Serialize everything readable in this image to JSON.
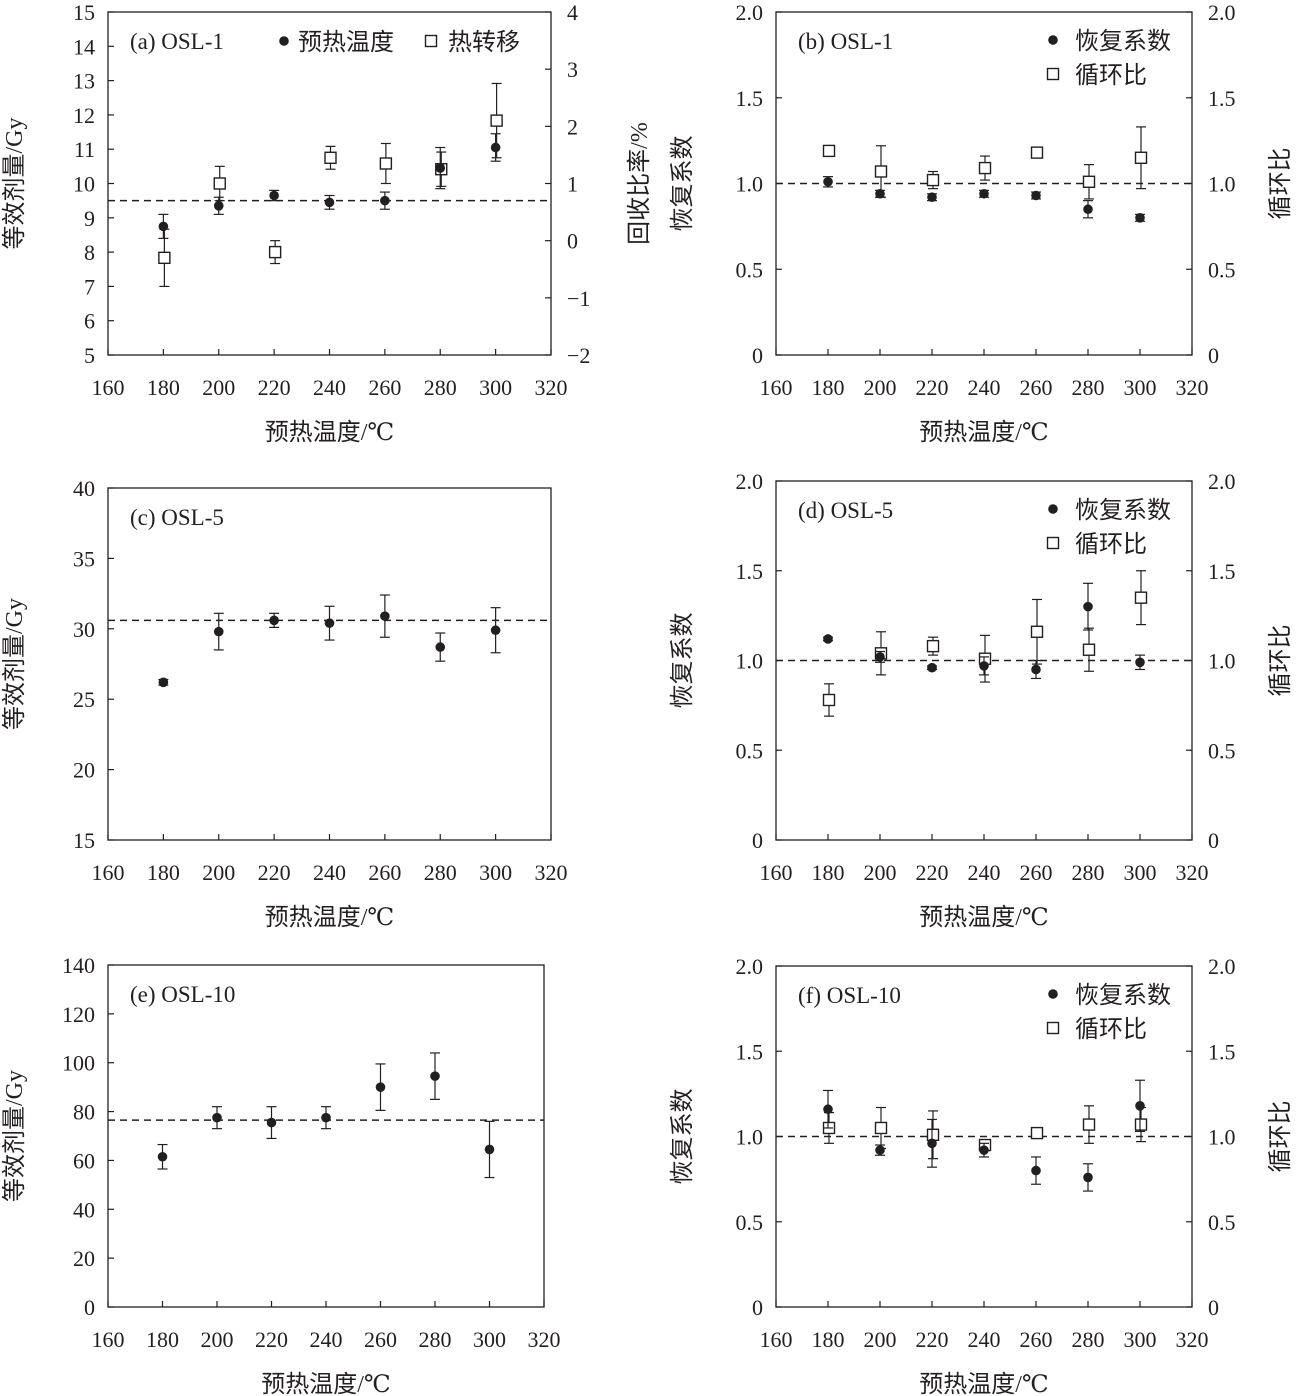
{
  "chart_data": [
    {
      "id": "a",
      "type": "scatter",
      "panel_label": "(a) OSL-1",
      "xlabel": "预热温度/℃",
      "ylabel": "等效剂量/Gy",
      "y2label": "回收比率/%",
      "xlim": [
        160,
        320
      ],
      "xticks": [
        160,
        180,
        200,
        220,
        240,
        260,
        280,
        300,
        320
      ],
      "ylim": [
        5,
        15
      ],
      "yticks": [
        5,
        6,
        7,
        8,
        9,
        10,
        11,
        12,
        13,
        14,
        15
      ],
      "y2lim": [
        -2,
        4
      ],
      "y2ticks": [
        -2,
        -1,
        0,
        1,
        2,
        3,
        4
      ],
      "y2ticklabels": [
        "−2",
        "−1",
        "0",
        "1",
        "2",
        "3",
        "4"
      ],
      "legend": [
        "预热温度",
        "热转移"
      ],
      "legend_position": "top",
      "reference_line": {
        "axis": "y",
        "value": 9.5,
        "style": "dashed"
      },
      "series": [
        {
          "name": "预热温度",
          "marker": "filled-circle",
          "axis": "y",
          "x": [
            180,
            200,
            220,
            240,
            260,
            280,
            300
          ],
          "y": [
            8.75,
            9.35,
            9.65,
            9.45,
            9.5,
            10.45,
            11.05
          ],
          "err": [
            0.35,
            0.25,
            0.15,
            0.2,
            0.25,
            0.6,
            0.4
          ]
        },
        {
          "name": "热转移",
          "marker": "open-square",
          "axis": "y2",
          "x": [
            180,
            200,
            220,
            240,
            260,
            280,
            300
          ],
          "y": [
            -0.3,
            1.0,
            -0.2,
            1.45,
            1.35,
            1.25,
            2.1
          ],
          "err": [
            0.5,
            0.3,
            0.2,
            0.2,
            0.35,
            0.3,
            0.65
          ]
        }
      ]
    },
    {
      "id": "b",
      "type": "scatter",
      "panel_label": "(b) OSL-1",
      "xlabel": "预热温度/℃",
      "ylabel": "恢复系数",
      "y2label": "循环比",
      "xlim": [
        160,
        320
      ],
      "xticks": [
        160,
        180,
        200,
        220,
        240,
        260,
        280,
        300,
        320
      ],
      "ylim": [
        0,
        2
      ],
      "yticks": [
        0,
        0.5,
        1,
        1.5,
        2
      ],
      "yticklabels": [
        "0",
        "0.5",
        "1.0",
        "1.5",
        "2.0"
      ],
      "y2lim": [
        0,
        2
      ],
      "y2ticks": [
        0,
        0.5,
        1,
        1.5,
        2
      ],
      "y2ticklabels": [
        "0",
        "0.5",
        "1.0",
        "1.5",
        "2.0"
      ],
      "legend": [
        "恢复系数",
        "循环比"
      ],
      "legend_position": "top-right",
      "reference_line": {
        "axis": "y",
        "value": 1.0,
        "style": "dashed"
      },
      "series": [
        {
          "name": "恢复系数",
          "marker": "filled-circle",
          "axis": "y",
          "x": [
            180,
            200,
            220,
            240,
            260,
            280,
            300
          ],
          "y": [
            1.01,
            0.94,
            0.92,
            0.94,
            0.93,
            0.85,
            0.8
          ],
          "err": [
            0.03,
            0.02,
            0.02,
            0.02,
            0.02,
            0.05,
            0.02
          ]
        },
        {
          "name": "循环比",
          "marker": "open-square",
          "axis": "y2",
          "x": [
            180,
            200,
            220,
            240,
            260,
            280,
            300
          ],
          "y": [
            1.19,
            1.07,
            1.02,
            1.09,
            1.18,
            1.01,
            1.15
          ],
          "err": [
            0.03,
            0.15,
            0.05,
            0.07,
            0.03,
            0.1,
            0.18
          ]
        }
      ]
    },
    {
      "id": "c",
      "type": "scatter",
      "panel_label": "(c) OSL-5",
      "xlabel": "预热温度/℃",
      "ylabel": "等效剂量/Gy",
      "xlim": [
        160,
        320
      ],
      "xticks": [
        160,
        180,
        200,
        220,
        240,
        260,
        280,
        300,
        320
      ],
      "ylim": [
        15,
        40
      ],
      "yticks": [
        15,
        20,
        25,
        30,
        35,
        40
      ],
      "reference_line": {
        "axis": "y",
        "value": 30.6,
        "style": "dashed"
      },
      "series": [
        {
          "marker": "filled-circle",
          "axis": "y",
          "x": [
            180,
            200,
            220,
            240,
            260,
            280,
            300
          ],
          "y": [
            26.2,
            29.8,
            30.6,
            30.4,
            30.9,
            28.7,
            29.9
          ],
          "err": [
            0.2,
            1.3,
            0.5,
            1.2,
            1.5,
            1.0,
            1.6
          ]
        }
      ]
    },
    {
      "id": "d",
      "type": "scatter",
      "panel_label": "(d) OSL-5",
      "xlabel": "预热温度/℃",
      "ylabel": "恢复系数",
      "y2label": "循环比",
      "xlim": [
        160,
        320
      ],
      "xticks": [
        160,
        180,
        200,
        220,
        240,
        260,
        280,
        300,
        320
      ],
      "ylim": [
        0,
        2
      ],
      "yticks": [
        0,
        0.5,
        1,
        1.5,
        2
      ],
      "yticklabels": [
        "0",
        "0.5",
        "1.0",
        "1.5",
        "2.0"
      ],
      "y2lim": [
        0,
        2
      ],
      "y2ticks": [
        0,
        0.5,
        1,
        1.5,
        2
      ],
      "y2ticklabels": [
        "0",
        "0.5",
        "1.0",
        "1.5",
        "2.0"
      ],
      "legend": [
        "恢复系数",
        "循环比"
      ],
      "legend_position": "top-right",
      "reference_line": {
        "axis": "y",
        "value": 1.0,
        "style": "dashed"
      },
      "series": [
        {
          "name": "恢复系数",
          "marker": "filled-circle",
          "axis": "y",
          "x": [
            180,
            200,
            220,
            240,
            260,
            280,
            300
          ],
          "y": [
            1.12,
            1.02,
            0.96,
            0.97,
            0.95,
            1.3,
            0.99
          ],
          "err": [
            0.01,
            0.03,
            0.01,
            0.05,
            0.05,
            0.13,
            0.04
          ]
        },
        {
          "name": "循环比",
          "marker": "open-square",
          "axis": "y2",
          "x": [
            180,
            200,
            220,
            240,
            260,
            280,
            300
          ],
          "y": [
            0.78,
            1.04,
            1.08,
            1.01,
            1.16,
            1.06,
            1.35
          ],
          "err": [
            0.09,
            0.12,
            0.05,
            0.13,
            0.18,
            0.12,
            0.15
          ]
        }
      ]
    },
    {
      "id": "e",
      "type": "scatter",
      "panel_label": "(e) OSL-10",
      "xlabel": "预热温度/℃",
      "ylabel": "等效剂量/Gy",
      "xlim": [
        160,
        320
      ],
      "xticks": [
        160,
        180,
        200,
        220,
        240,
        260,
        280,
        300,
        320
      ],
      "ylim": [
        0,
        140
      ],
      "yticks": [
        0,
        20,
        40,
        60,
        80,
        100,
        120,
        140
      ],
      "reference_line": {
        "axis": "y",
        "value": 76.5,
        "style": "dashed"
      },
      "series": [
        {
          "marker": "filled-circle",
          "axis": "y",
          "x": [
            180,
            200,
            220,
            240,
            260,
            280,
            300
          ],
          "y": [
            61.5,
            77.5,
            75.5,
            77.5,
            90.0,
            94.5,
            64.5
          ],
          "err": [
            5.0,
            4.5,
            6.5,
            4.5,
            9.5,
            9.5,
            11.5
          ]
        }
      ]
    },
    {
      "id": "f",
      "type": "scatter",
      "panel_label": "(f) OSL-10",
      "xlabel": "预热温度/℃",
      "ylabel": "恢复系数",
      "y2label": "循环比",
      "xlim": [
        160,
        320
      ],
      "xticks": [
        160,
        180,
        200,
        220,
        240,
        260,
        280,
        300,
        320
      ],
      "ylim": [
        0,
        2
      ],
      "yticks": [
        0,
        0.5,
        1,
        1.5,
        2
      ],
      "yticklabels": [
        "0",
        "0.5",
        "1.0",
        "1.5",
        "2.0"
      ],
      "y2lim": [
        0,
        2
      ],
      "y2ticks": [
        0,
        0.5,
        1,
        1.5,
        2
      ],
      "y2ticklabels": [
        "0",
        "0.5",
        "1.0",
        "1.5",
        "2.0"
      ],
      "legend": [
        "恢复系数",
        "循环比"
      ],
      "legend_position": "top-right",
      "reference_line": {
        "axis": "y",
        "value": 1.0,
        "style": "dashed"
      },
      "series": [
        {
          "name": "恢复系数",
          "marker": "filled-circle",
          "axis": "y",
          "x": [
            180,
            200,
            220,
            240,
            260,
            280,
            300
          ],
          "y": [
            1.16,
            0.92,
            0.96,
            0.92,
            0.8,
            0.76,
            1.18
          ],
          "err": [
            0.11,
            0.03,
            0.14,
            0.04,
            0.08,
            0.08,
            0.15
          ]
        },
        {
          "name": "循环比",
          "marker": "open-square",
          "axis": "y2",
          "x": [
            180,
            200,
            220,
            240,
            260,
            280,
            300
          ],
          "y": [
            1.05,
            1.05,
            1.01,
            0.95,
            1.02,
            1.07,
            1.07
          ],
          "err": [
            0.09,
            0.12,
            0.14,
            0.03,
            0.03,
            0.11,
            0.1
          ]
        }
      ]
    }
  ]
}
